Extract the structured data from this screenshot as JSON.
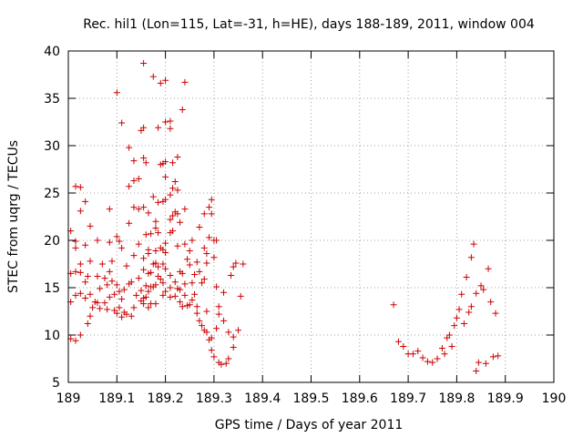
{
  "chart_data": {
    "type": "scatter",
    "title": "Rec. hil1 (Lon=115, Lat=-31, h=HE), days 188-189, 2011, window 004",
    "xlabel": "GPS time / Days of year 2011",
    "ylabel": "STEC from uqrg / TECUs",
    "xlim": [
      189,
      190
    ],
    "ylim": [
      5,
      40
    ],
    "xticks": [
      "189",
      "189.1",
      "189.2",
      "189.3",
      "189.4",
      "189.5",
      "189.6",
      "189.7",
      "189.8",
      "189.9",
      "190"
    ],
    "yticks": [
      "5",
      "10",
      "15",
      "20",
      "25",
      "30",
      "35",
      "40"
    ],
    "grid": true,
    "marker": "+",
    "marker_color": "#cc0000",
    "series": [
      {
        "name": "STEC",
        "points": [
          [
            189.005,
            9.6
          ],
          [
            189.005,
            13.5
          ],
          [
            189.005,
            16.5
          ],
          [
            189.005,
            21.0
          ],
          [
            189.015,
            9.4
          ],
          [
            189.015,
            14.2
          ],
          [
            189.015,
            16.7
          ],
          [
            189.015,
            19.2
          ],
          [
            189.015,
            19.9
          ],
          [
            189.015,
            25.7
          ],
          [
            189.025,
            10.0
          ],
          [
            189.025,
            14.4
          ],
          [
            189.025,
            16.6
          ],
          [
            189.025,
            17.5
          ],
          [
            189.025,
            23.1
          ],
          [
            189.025,
            25.6
          ],
          [
            189.035,
            13.9
          ],
          [
            189.035,
            15.6
          ],
          [
            189.035,
            19.5
          ],
          [
            189.035,
            24.1
          ],
          [
            189.04,
            11.2
          ],
          [
            189.04,
            16.2
          ],
          [
            189.045,
            12.0
          ],
          [
            189.045,
            14.3
          ],
          [
            189.045,
            17.8
          ],
          [
            189.045,
            21.5
          ],
          [
            189.05,
            12.9
          ],
          [
            189.055,
            13.5
          ],
          [
            189.06,
            13.4
          ],
          [
            189.06,
            16.2
          ],
          [
            189.06,
            20.0
          ],
          [
            189.065,
            12.8
          ],
          [
            189.065,
            14.9
          ],
          [
            189.07,
            17.5
          ],
          [
            189.075,
            13.4
          ],
          [
            189.075,
            16.0
          ],
          [
            189.08,
            12.7
          ],
          [
            189.08,
            15.3
          ],
          [
            189.085,
            14.0
          ],
          [
            189.085,
            16.7
          ],
          [
            189.085,
            19.8
          ],
          [
            189.085,
            23.3
          ],
          [
            189.09,
            15.7
          ],
          [
            189.09,
            17.8
          ],
          [
            189.095,
            12.6
          ],
          [
            189.095,
            14.3
          ],
          [
            189.1,
            12.3
          ],
          [
            189.1,
            15.3
          ],
          [
            189.1,
            20.4
          ],
          [
            189.1,
            35.6
          ],
          [
            189.105,
            12.9
          ],
          [
            189.105,
            14.6
          ],
          [
            189.105,
            19.9
          ],
          [
            189.11,
            11.9
          ],
          [
            189.11,
            13.8
          ],
          [
            189.11,
            19.2
          ],
          [
            189.11,
            32.4
          ],
          [
            189.115,
            12.4
          ],
          [
            189.115,
            14.8
          ],
          [
            189.12,
            12.2
          ],
          [
            189.12,
            17.3
          ],
          [
            189.125,
            15.4
          ],
          [
            189.125,
            21.8
          ],
          [
            189.125,
            25.7
          ],
          [
            189.125,
            29.8
          ],
          [
            189.13,
            12.0
          ],
          [
            189.13,
            15.6
          ],
          [
            189.135,
            12.9
          ],
          [
            189.135,
            18.4
          ],
          [
            189.135,
            23.5
          ],
          [
            189.135,
            26.3
          ],
          [
            189.135,
            28.4
          ],
          [
            189.14,
            14.2
          ],
          [
            189.145,
            16.0
          ],
          [
            189.145,
            19.6
          ],
          [
            189.145,
            23.3
          ],
          [
            189.145,
            26.5
          ],
          [
            189.15,
            13.6
          ],
          [
            189.15,
            14.7
          ],
          [
            189.15,
            31.6
          ],
          [
            189.155,
            13.3
          ],
          [
            189.155,
            13.9
          ],
          [
            189.155,
            16.9
          ],
          [
            189.155,
            18.1
          ],
          [
            189.155,
            23.5
          ],
          [
            189.155,
            28.7
          ],
          [
            189.155,
            31.9
          ],
          [
            189.155,
            38.7
          ],
          [
            189.16,
            14.0
          ],
          [
            189.16,
            15.2
          ],
          [
            189.16,
            20.6
          ],
          [
            189.16,
            28.2
          ],
          [
            189.165,
            12.9
          ],
          [
            189.165,
            14.6
          ],
          [
            189.165,
            16.5
          ],
          [
            189.165,
            18.6
          ],
          [
            189.165,
            19.0
          ],
          [
            189.165,
            22.9
          ],
          [
            189.17,
            13.3
          ],
          [
            189.17,
            15.1
          ],
          [
            189.17,
            16.6
          ],
          [
            189.17,
            20.7
          ],
          [
            189.175,
            15.1
          ],
          [
            189.175,
            17.5
          ],
          [
            189.175,
            24.6
          ],
          [
            189.175,
            37.3
          ],
          [
            189.18,
            13.3
          ],
          [
            189.18,
            15.3
          ],
          [
            189.18,
            17.6
          ],
          [
            189.18,
            18.9
          ],
          [
            189.18,
            21.3
          ],
          [
            189.18,
            22.0
          ],
          [
            189.185,
            16.2
          ],
          [
            189.185,
            17.2
          ],
          [
            189.185,
            20.8
          ],
          [
            189.185,
            24.0
          ],
          [
            189.185,
            31.9
          ],
          [
            189.19,
            15.9
          ],
          [
            189.19,
            19.2
          ],
          [
            189.19,
            28.0
          ],
          [
            189.19,
            36.6
          ],
          [
            189.195,
            14.2
          ],
          [
            189.195,
            15.5
          ],
          [
            189.195,
            17.5
          ],
          [
            189.195,
            19.0
          ],
          [
            189.195,
            24.1
          ],
          [
            189.195,
            28.1
          ],
          [
            189.2,
            14.6
          ],
          [
            189.2,
            17.0
          ],
          [
            189.2,
            18.7
          ],
          [
            189.2,
            19.7
          ],
          [
            189.2,
            24.3
          ],
          [
            189.2,
            26.7
          ],
          [
            189.2,
            28.3
          ],
          [
            189.2,
            32.5
          ],
          [
            189.2,
            36.9
          ],
          [
            189.21,
            14.0
          ],
          [
            189.21,
            15.0
          ],
          [
            189.21,
            16.3
          ],
          [
            189.21,
            20.8
          ],
          [
            189.21,
            22.2
          ],
          [
            189.21,
            24.8
          ],
          [
            189.21,
            31.8
          ],
          [
            189.21,
            32.6
          ],
          [
            189.215,
            21.0
          ],
          [
            189.215,
            22.6
          ],
          [
            189.215,
            25.5
          ],
          [
            189.215,
            28.2
          ],
          [
            189.22,
            14.1
          ],
          [
            189.22,
            15.6
          ],
          [
            189.22,
            23.0
          ],
          [
            189.22,
            26.2
          ],
          [
            189.225,
            14.9
          ],
          [
            189.225,
            19.4
          ],
          [
            189.225,
            22.8
          ],
          [
            189.225,
            25.3
          ],
          [
            189.225,
            28.8
          ],
          [
            189.23,
            13.5
          ],
          [
            189.23,
            14.8
          ],
          [
            189.23,
            16.7
          ],
          [
            189.23,
            21.9
          ],
          [
            189.235,
            13.0
          ],
          [
            189.235,
            16.5
          ],
          [
            189.235,
            33.8
          ],
          [
            189.24,
            14.2
          ],
          [
            189.24,
            15.4
          ],
          [
            189.24,
            19.6
          ],
          [
            189.24,
            23.3
          ],
          [
            189.24,
            36.7
          ],
          [
            189.245,
            13.1
          ],
          [
            189.245,
            18.0
          ],
          [
            189.25,
            13.2
          ],
          [
            189.25,
            17.4
          ],
          [
            189.25,
            18.9
          ],
          [
            189.255,
            13.7
          ],
          [
            189.255,
            15.5
          ],
          [
            189.255,
            20.0
          ],
          [
            189.26,
            14.3
          ],
          [
            189.26,
            16.4
          ],
          [
            189.265,
            12.3
          ],
          [
            189.265,
            13.0
          ],
          [
            189.265,
            17.7
          ],
          [
            189.27,
            11.5
          ],
          [
            189.27,
            16.7
          ],
          [
            189.27,
            21.4
          ],
          [
            189.275,
            11.0
          ],
          [
            189.275,
            15.5
          ],
          [
            189.28,
            10.5
          ],
          [
            189.28,
            15.9
          ],
          [
            189.28,
            19.2
          ],
          [
            189.28,
            22.8
          ],
          [
            189.285,
            10.3
          ],
          [
            189.285,
            12.5
          ],
          [
            189.285,
            17.6
          ],
          [
            189.285,
            18.6
          ],
          [
            189.29,
            9.5
          ],
          [
            189.29,
            20.3
          ],
          [
            189.29,
            23.5
          ],
          [
            189.295,
            8.4
          ],
          [
            189.295,
            9.7
          ],
          [
            189.295,
            22.8
          ],
          [
            189.295,
            24.3
          ],
          [
            189.3,
            7.7
          ],
          [
            189.3,
            18.2
          ],
          [
            189.3,
            20.0
          ],
          [
            189.305,
            10.7
          ],
          [
            189.305,
            15.1
          ],
          [
            189.305,
            20.0
          ],
          [
            189.31,
            7.1
          ],
          [
            189.31,
            12.2
          ],
          [
            189.31,
            13.0
          ],
          [
            189.315,
            6.9
          ],
          [
            189.32,
            11.5
          ],
          [
            189.32,
            14.5
          ],
          [
            189.325,
            7.0
          ],
          [
            189.33,
            7.5
          ],
          [
            189.33,
            10.3
          ],
          [
            189.335,
            16.3
          ],
          [
            189.34,
            8.7
          ],
          [
            189.34,
            17.2
          ],
          [
            189.34,
            9.8
          ],
          [
            189.345,
            17.6
          ],
          [
            189.35,
            10.5
          ],
          [
            189.355,
            14.1
          ],
          [
            189.36,
            17.5
          ],
          [
            189.67,
            13.2
          ],
          [
            189.68,
            9.3
          ],
          [
            189.69,
            8.8
          ],
          [
            189.7,
            8.0
          ],
          [
            189.71,
            8.0
          ],
          [
            189.72,
            8.3
          ],
          [
            189.73,
            7.6
          ],
          [
            189.74,
            7.2
          ],
          [
            189.75,
            7.1
          ],
          [
            189.76,
            7.5
          ],
          [
            189.77,
            8.6
          ],
          [
            189.775,
            8.0
          ],
          [
            189.78,
            9.7
          ],
          [
            189.785,
            10.0
          ],
          [
            189.79,
            8.8
          ],
          [
            189.795,
            11.0
          ],
          [
            189.8,
            11.8
          ],
          [
            189.805,
            12.7
          ],
          [
            189.81,
            14.3
          ],
          [
            189.815,
            11.2
          ],
          [
            189.82,
            16.1
          ],
          [
            189.825,
            12.4
          ],
          [
            189.83,
            18.2
          ],
          [
            189.83,
            13.0
          ],
          [
            189.835,
            19.6
          ],
          [
            189.84,
            14.4
          ],
          [
            189.84,
            6.2
          ],
          [
            189.845,
            7.1
          ],
          [
            189.85,
            15.2
          ],
          [
            189.855,
            14.8
          ],
          [
            189.86,
            7.0
          ],
          [
            189.865,
            17.0
          ],
          [
            189.87,
            13.5
          ],
          [
            189.875,
            7.7
          ],
          [
            189.88,
            12.3
          ],
          [
            189.885,
            7.8
          ]
        ]
      }
    ]
  }
}
